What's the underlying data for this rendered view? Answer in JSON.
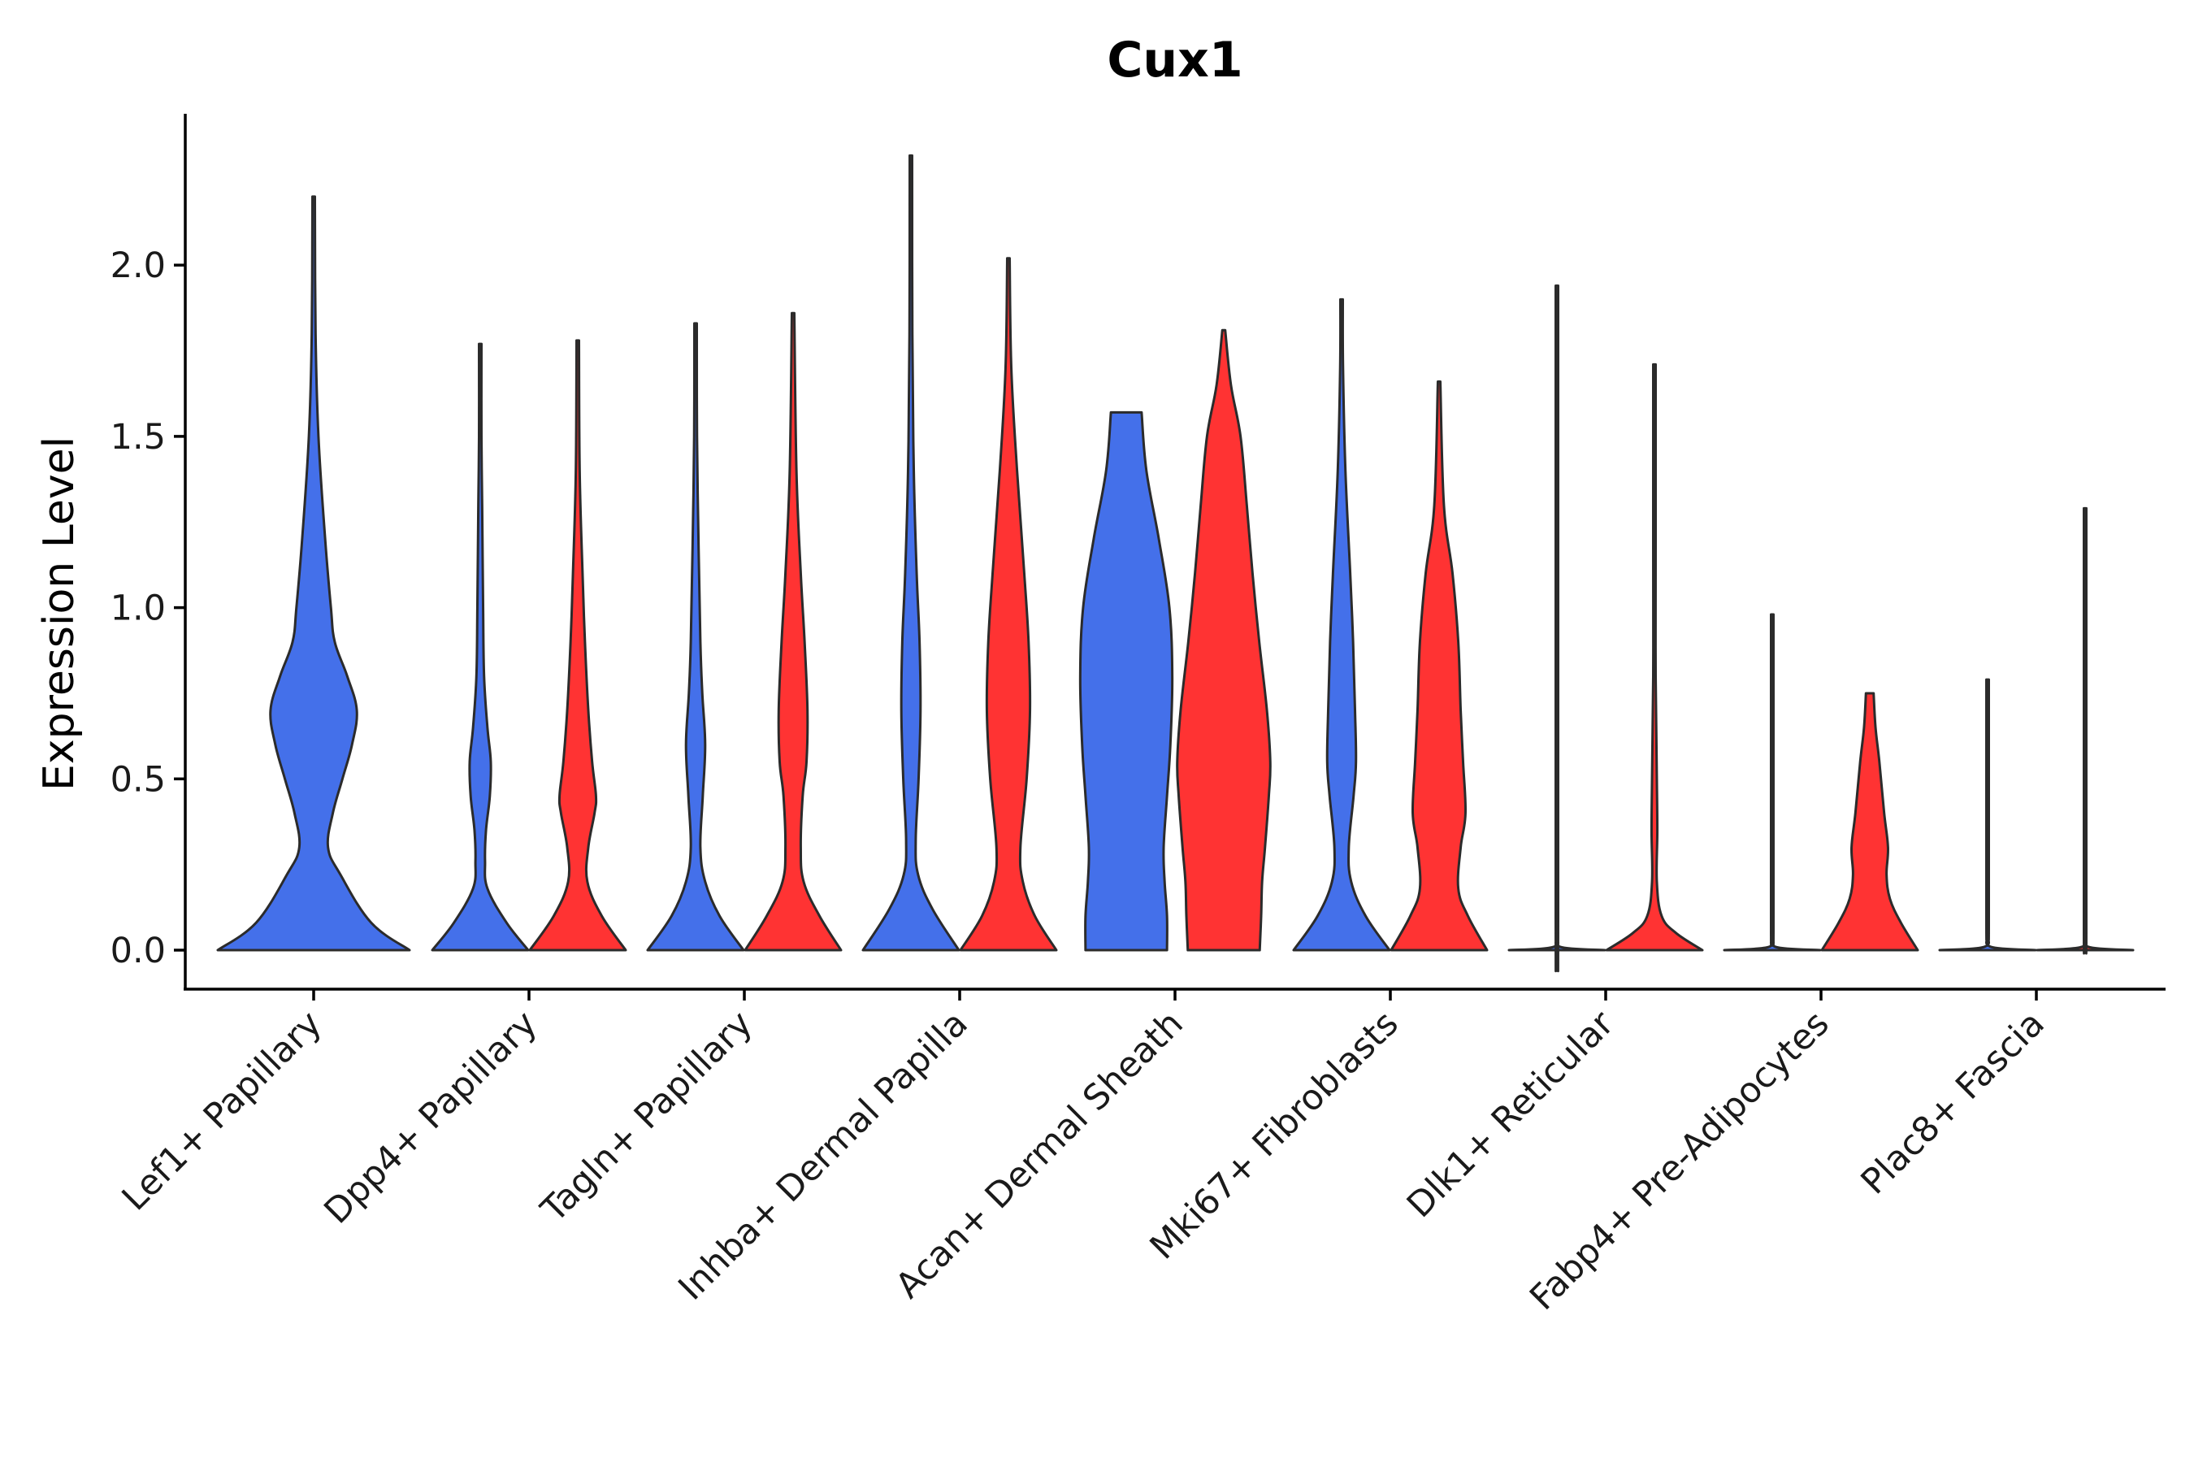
{
  "chart_data": {
    "type": "violin",
    "title": "Cux1",
    "xlabel": "",
    "ylabel": "Expression Level",
    "ylim": [
      -0.12,
      2.43
    ],
    "yticks": [
      "0.0",
      "0.5",
      "1.0",
      "1.5",
      "2.0"
    ],
    "grid": false,
    "legend": "none",
    "colors": {
      "series_a": "#4470EA",
      "series_b": "#FF3333",
      "outline": "#2b2b2b"
    },
    "categories": [
      "Lef1+ Papillary",
      "Dpp4+ Papillary",
      "Tagln+ Papillary",
      "Inhba+ Dermal Papilla",
      "Acan+ Dermal Sheath",
      "Mki67+ Fibroblasts",
      "Dlk1+ Reticular",
      "Fabp4+ Pre-Adipocytes",
      "Plac8+ Fascia"
    ],
    "series": [
      {
        "name": "series_a",
        "color": "#4470EA",
        "violins": [
          {
            "category": "Lef1+ Papillary",
            "max": 2.2,
            "density": [
              [
                0,
                1
              ],
              [
                0.08,
                0.6
              ],
              [
                0.22,
                0.28
              ],
              [
                0.3,
                0.15
              ],
              [
                0.4,
                0.2
              ],
              [
                0.5,
                0.3
              ],
              [
                0.6,
                0.4
              ],
              [
                0.7,
                0.45
              ],
              [
                0.8,
                0.35
              ],
              [
                0.9,
                0.22
              ],
              [
                1.0,
                0.18
              ],
              [
                1.2,
                0.12
              ],
              [
                1.5,
                0.05
              ],
              [
                1.8,
                0.02
              ],
              [
                2.2,
                0.01
              ]
            ]
          },
          {
            "category": "Dpp4+ Papillary",
            "max": 1.77,
            "density": [
              [
                0,
                1
              ],
              [
                0.08,
                0.55
              ],
              [
                0.18,
                0.15
              ],
              [
                0.26,
                0.1
              ],
              [
                0.35,
                0.12
              ],
              [
                0.45,
                0.2
              ],
              [
                0.55,
                0.22
              ],
              [
                0.65,
                0.15
              ],
              [
                0.8,
                0.08
              ],
              [
                1.0,
                0.06
              ],
              [
                1.3,
                0.04
              ],
              [
                1.5,
                0.02
              ],
              [
                1.77,
                0.01
              ]
            ]
          },
          {
            "category": "Tagln+ Papillary",
            "max": 1.83,
            "density": [
              [
                0,
                1
              ],
              [
                0.1,
                0.5
              ],
              [
                0.2,
                0.2
              ],
              [
                0.3,
                0.1
              ],
              [
                0.45,
                0.15
              ],
              [
                0.6,
                0.2
              ],
              [
                0.75,
                0.14
              ],
              [
                0.9,
                0.1
              ],
              [
                1.2,
                0.06
              ],
              [
                1.5,
                0.03
              ],
              [
                1.83,
                0.01
              ]
            ]
          },
          {
            "category": "Inhba+ Dermal Papilla",
            "max": 2.32,
            "density": [
              [
                0,
                1
              ],
              [
                0.12,
                0.45
              ],
              [
                0.22,
                0.15
              ],
              [
                0.32,
                0.1
              ],
              [
                0.5,
                0.16
              ],
              [
                0.7,
                0.2
              ],
              [
                0.9,
                0.18
              ],
              [
                1.1,
                0.12
              ],
              [
                1.4,
                0.06
              ],
              [
                1.8,
                0.03
              ],
              [
                2.32,
                0.01
              ]
            ]
          },
          {
            "category": "Acan+ Dermal Sheath",
            "max": 1.57,
            "density": [
              [
                0,
                0.85
              ],
              [
                0.1,
                0.85
              ],
              [
                0.2,
                0.8
              ],
              [
                0.3,
                0.78
              ],
              [
                0.45,
                0.85
              ],
              [
                0.6,
                0.92
              ],
              [
                0.8,
                0.96
              ],
              [
                1.0,
                0.9
              ],
              [
                1.2,
                0.68
              ],
              [
                1.4,
                0.42
              ],
              [
                1.57,
                0.32
              ]
            ]
          },
          {
            "category": "Mki67+ Fibroblasts",
            "max": 1.9,
            "density": [
              [
                0,
                1
              ],
              [
                0.1,
                0.5
              ],
              [
                0.2,
                0.2
              ],
              [
                0.3,
                0.15
              ],
              [
                0.45,
                0.25
              ],
              [
                0.55,
                0.3
              ],
              [
                0.7,
                0.28
              ],
              [
                0.9,
                0.24
              ],
              [
                1.1,
                0.18
              ],
              [
                1.4,
                0.08
              ],
              [
                1.7,
                0.03
              ],
              [
                1.9,
                0.01
              ]
            ]
          },
          {
            "category": "Dlk1+ Reticular",
            "max": 1.94,
            "density": [
              [
                0,
                1
              ],
              [
                0.01,
                0.06
              ],
              [
                0.05,
                0.02
              ],
              [
                0.1,
                0.015
              ],
              [
                1.94,
                0.015
              ]
            ]
          },
          {
            "category": "Fabp4+ Pre-Adipocytes",
            "max": 0.98,
            "density": [
              [
                0,
                1
              ],
              [
                0.01,
                0.06
              ],
              [
                0.05,
                0.02
              ],
              [
                0.1,
                0.015
              ],
              [
                0.98,
                0.015
              ]
            ]
          },
          {
            "category": "Plac8+ Fascia",
            "max": 0.79,
            "density": [
              [
                0,
                1
              ],
              [
                0.01,
                0.06
              ],
              [
                0.05,
                0.02
              ],
              [
                0.1,
                0.015
              ],
              [
                0.79,
                0.015
              ]
            ]
          }
        ]
      },
      {
        "name": "series_b",
        "color": "#FF3333",
        "violins": [
          {
            "category": "Dpp4+ Papillary",
            "max": 1.78,
            "density": [
              [
                0,
                1
              ],
              [
                0.1,
                0.5
              ],
              [
                0.2,
                0.2
              ],
              [
                0.3,
                0.22
              ],
              [
                0.4,
                0.35
              ],
              [
                0.45,
                0.38
              ],
              [
                0.55,
                0.3
              ],
              [
                0.7,
                0.22
              ],
              [
                0.9,
                0.15
              ],
              [
                1.1,
                0.1
              ],
              [
                1.4,
                0.04
              ],
              [
                1.78,
                0.01
              ]
            ]
          },
          {
            "category": "Tagln+ Papillary",
            "max": 1.86,
            "density": [
              [
                0,
                1
              ],
              [
                0.1,
                0.55
              ],
              [
                0.2,
                0.22
              ],
              [
                0.3,
                0.16
              ],
              [
                0.45,
                0.2
              ],
              [
                0.55,
                0.28
              ],
              [
                0.7,
                0.3
              ],
              [
                0.9,
                0.24
              ],
              [
                1.1,
                0.16
              ],
              [
                1.4,
                0.07
              ],
              [
                1.86,
                0.01
              ]
            ]
          },
          {
            "category": "Inhba+ Dermal Papilla",
            "max": 2.02,
            "density": [
              [
                0,
                1
              ],
              [
                0.1,
                0.55
              ],
              [
                0.2,
                0.3
              ],
              [
                0.3,
                0.25
              ],
              [
                0.5,
                0.38
              ],
              [
                0.7,
                0.45
              ],
              [
                0.9,
                0.42
              ],
              [
                1.1,
                0.33
              ],
              [
                1.4,
                0.18
              ],
              [
                1.7,
                0.06
              ],
              [
                2.02,
                0.01
              ]
            ]
          },
          {
            "category": "Acan+ Dermal Sheath",
            "max": 1.81,
            "density": [
              [
                0,
                0.75
              ],
              [
                0.1,
                0.78
              ],
              [
                0.2,
                0.8
              ],
              [
                0.3,
                0.86
              ],
              [
                0.45,
                0.94
              ],
              [
                0.55,
                0.97
              ],
              [
                0.7,
                0.9
              ],
              [
                0.9,
                0.74
              ],
              [
                1.1,
                0.6
              ],
              [
                1.3,
                0.48
              ],
              [
                1.5,
                0.35
              ],
              [
                1.65,
                0.15
              ],
              [
                1.81,
                0.03
              ]
            ]
          },
          {
            "category": "Mki67+ Fibroblasts",
            "max": 1.66,
            "density": [
              [
                0,
                1
              ],
              [
                0.1,
                0.6
              ],
              [
                0.18,
                0.4
              ],
              [
                0.3,
                0.45
              ],
              [
                0.4,
                0.55
              ],
              [
                0.55,
                0.5
              ],
              [
                0.7,
                0.45
              ],
              [
                0.9,
                0.4
              ],
              [
                1.1,
                0.28
              ],
              [
                1.3,
                0.1
              ],
              [
                1.66,
                0.01
              ]
            ]
          },
          {
            "category": "Dlk1+ Reticular",
            "max": 1.71,
            "density": [
              [
                0,
                1
              ],
              [
                0.05,
                0.45
              ],
              [
                0.1,
                0.15
              ],
              [
                0.2,
                0.05
              ],
              [
                0.35,
                0.06
              ],
              [
                0.5,
                0.05
              ],
              [
                0.8,
                0.02
              ],
              [
                1.2,
                0.015
              ],
              [
                1.71,
                0.01
              ]
            ]
          },
          {
            "category": "Fabp4+ Pre-Adipocytes",
            "max": 0.75,
            "density": [
              [
                0,
                1
              ],
              [
                0.08,
                0.65
              ],
              [
                0.15,
                0.42
              ],
              [
                0.22,
                0.35
              ],
              [
                0.3,
                0.38
              ],
              [
                0.4,
                0.3
              ],
              [
                0.55,
                0.2
              ],
              [
                0.65,
                0.12
              ],
              [
                0.75,
                0.08
              ]
            ]
          },
          {
            "category": "Plac8+ Fascia",
            "max": 1.29,
            "density": [
              [
                0,
                1
              ],
              [
                0.01,
                0.06
              ],
              [
                0.05,
                0.02
              ],
              [
                0.1,
                0.015
              ],
              [
                1.29,
                0.015
              ]
            ]
          }
        ]
      }
    ]
  }
}
